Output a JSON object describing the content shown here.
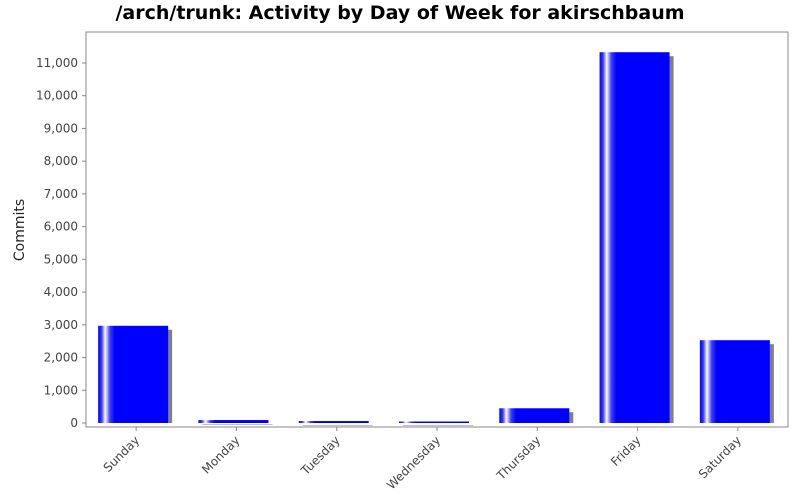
{
  "chart_data": {
    "type": "bar",
    "title": "/arch/trunk: Activity by Day of Week for akirschbaum",
    "ylabel": "Commits",
    "xlabel": "",
    "categories": [
      "Sunday",
      "Monday",
      "Tuesday",
      "Wednesday",
      "Thursday",
      "Friday",
      "Saturday"
    ],
    "values": [
      2970,
      90,
      60,
      10,
      450,
      11330,
      2530
    ],
    "ylim": [
      0,
      11800
    ],
    "yticks": [
      0,
      1000,
      2000,
      3000,
      4000,
      5000,
      6000,
      7000,
      8000,
      9000,
      10000,
      11000
    ],
    "ytick_labels": [
      "0",
      "1,000",
      "2,000",
      "3,000",
      "4,000",
      "5,000",
      "6,000",
      "7,000",
      "8,000",
      "9,000",
      "10,000",
      "11,000"
    ],
    "grid": false,
    "legend": "none",
    "bar_color": "#0000ff",
    "shadow_color": "#808080"
  }
}
